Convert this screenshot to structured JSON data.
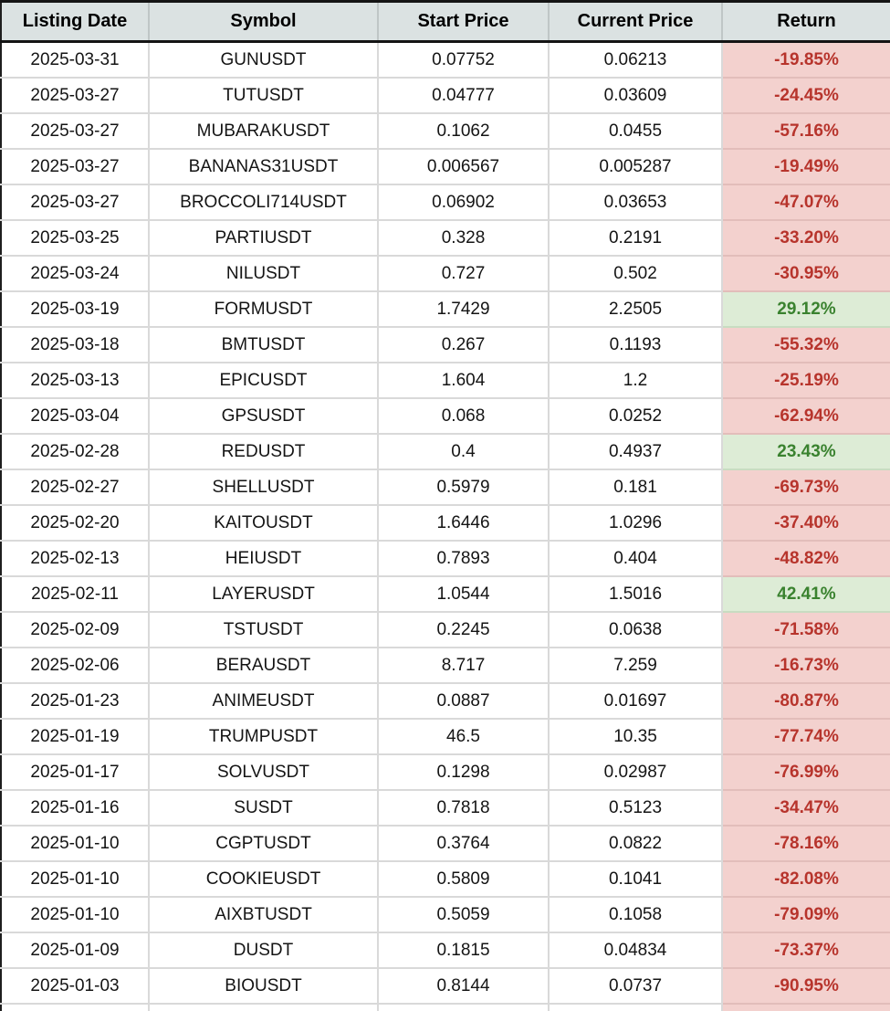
{
  "chart_data": {
    "type": "table",
    "title": "",
    "columns": [
      "Listing Date",
      "Symbol",
      "Start Price",
      "Current Price",
      "Return"
    ],
    "rows": [
      [
        "2025-03-31",
        "GUNUSDT",
        "0.07752",
        "0.06213",
        "-19.85%"
      ],
      [
        "2025-03-27",
        "TUTUSDT",
        "0.04777",
        "0.03609",
        "-24.45%"
      ],
      [
        "2025-03-27",
        "MUBARAKUSDT",
        "0.1062",
        "0.0455",
        "-57.16%"
      ],
      [
        "2025-03-27",
        "BANANAS31USDT",
        "0.006567",
        "0.005287",
        "-19.49%"
      ],
      [
        "2025-03-27",
        "BROCCOLI714USDT",
        "0.06902",
        "0.03653",
        "-47.07%"
      ],
      [
        "2025-03-25",
        "PARTIUSDT",
        "0.328",
        "0.2191",
        "-33.20%"
      ],
      [
        "2025-03-24",
        "NILUSDT",
        "0.727",
        "0.502",
        "-30.95%"
      ],
      [
        "2025-03-19",
        "FORMUSDT",
        "1.7429",
        "2.2505",
        "29.12%"
      ],
      [
        "2025-03-18",
        "BMTUSDT",
        "0.267",
        "0.1193",
        "-55.32%"
      ],
      [
        "2025-03-13",
        "EPICUSDT",
        "1.604",
        "1.2",
        "-25.19%"
      ],
      [
        "2025-03-04",
        "GPSUSDT",
        "0.068",
        "0.0252",
        "-62.94%"
      ],
      [
        "2025-02-28",
        "REDUSDT",
        "0.4",
        "0.4937",
        "23.43%"
      ],
      [
        "2025-02-27",
        "SHELLUSDT",
        "0.5979",
        "0.181",
        "-69.73%"
      ],
      [
        "2025-02-20",
        "KAITOUSDT",
        "1.6446",
        "1.0296",
        "-37.40%"
      ],
      [
        "2025-02-13",
        "HEIUSDT",
        "0.7893",
        "0.404",
        "-48.82%"
      ],
      [
        "2025-02-11",
        "LAYERUSDT",
        "1.0544",
        "1.5016",
        "42.41%"
      ],
      [
        "2025-02-09",
        "TSTUSDT",
        "0.2245",
        "0.0638",
        "-71.58%"
      ],
      [
        "2025-02-06",
        "BERAUSDT",
        "8.717",
        "7.259",
        "-16.73%"
      ],
      [
        "2025-01-23",
        "ANIMEUSDT",
        "0.0887",
        "0.01697",
        "-80.87%"
      ],
      [
        "2025-01-19",
        "TRUMPUSDT",
        "46.5",
        "10.35",
        "-77.74%"
      ],
      [
        "2025-01-17",
        "SOLVUSDT",
        "0.1298",
        "0.02987",
        "-76.99%"
      ],
      [
        "2025-01-16",
        "SUSDT",
        "0.7818",
        "0.5123",
        "-34.47%"
      ],
      [
        "2025-01-10",
        "CGPTUSDT",
        "0.3764",
        "0.0822",
        "-78.16%"
      ],
      [
        "2025-01-10",
        "COOKIEUSDT",
        "0.5809",
        "0.1041",
        "-82.08%"
      ],
      [
        "2025-01-10",
        "AIXBTUSDT",
        "0.5059",
        "0.1058",
        "-79.09%"
      ],
      [
        "2025-01-09",
        "DUSDT",
        "0.1815",
        "0.04834",
        "-73.37%"
      ],
      [
        "2025-01-03",
        "BIOUSDT",
        "0.8144",
        "0.0737",
        "-90.95%"
      ]
    ]
  },
  "colors": {
    "header_bg": "#dbe2e2",
    "negative_bg": "#f3d1ce",
    "negative_text": "#b7342c",
    "positive_bg": "#ddecd6",
    "positive_text": "#3a822f"
  }
}
